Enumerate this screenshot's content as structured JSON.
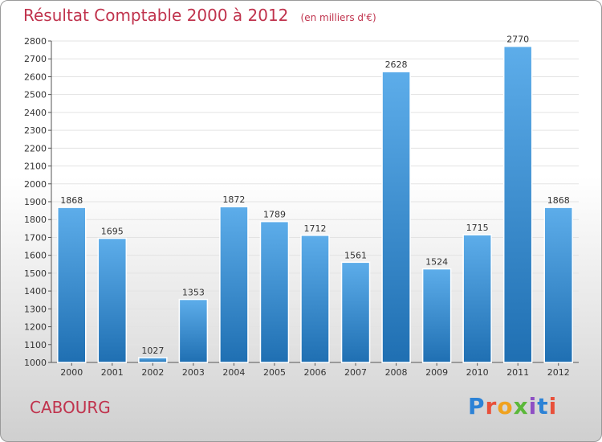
{
  "header": {
    "title": "Résultat Comptable 2000 à 2012",
    "subtitle": "(en milliers d'€)"
  },
  "footer": {
    "city": "CABOURG",
    "logo": "Proxiti"
  },
  "colors": {
    "title": "#c0334d",
    "bar_light": "#5dadea",
    "bar_dark": "#1f6fb2",
    "grid": "#e3e3e3"
  },
  "chart_data": {
    "type": "bar",
    "categories": [
      "2000",
      "2001",
      "2002",
      "2003",
      "2004",
      "2005",
      "2006",
      "2007",
      "2008",
      "2009",
      "2010",
      "2011",
      "2012"
    ],
    "values": [
      1868,
      1695,
      1027,
      1353,
      1872,
      1789,
      1712,
      1561,
      2628,
      1524,
      1715,
      2770,
      1868
    ],
    "ylim": [
      1000,
      2800
    ],
    "yticks": [
      1000,
      1100,
      1200,
      1300,
      1400,
      1500,
      1600,
      1700,
      1800,
      1900,
      2000,
      2100,
      2200,
      2300,
      2400,
      2500,
      2600,
      2700,
      2800
    ],
    "grid": true,
    "legend": "none"
  }
}
